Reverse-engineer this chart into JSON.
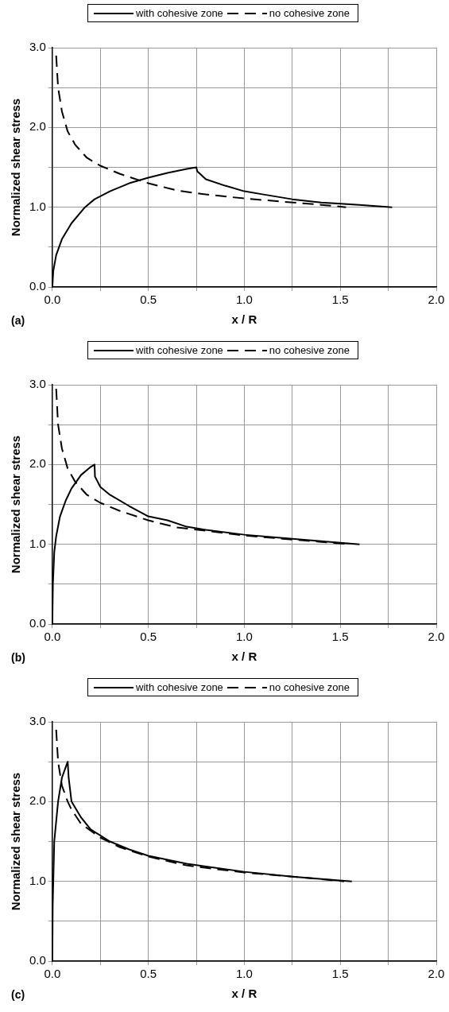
{
  "chart_data": [
    {
      "type": "line",
      "xlabel": "x / R",
      "ylabel": "Normalized shear stress",
      "annotations": [
        "(a)"
      ],
      "xlim": [
        0,
        2
      ],
      "ylim": [
        0,
        3
      ],
      "xticks": [
        {
          "value": 0,
          "label": "0.0"
        },
        {
          "value": 0.25,
          "label": null
        },
        {
          "value": 0.5,
          "label": "0.5"
        },
        {
          "value": 0.75,
          "label": null
        },
        {
          "value": 1,
          "label": "1.0"
        },
        {
          "value": 1.25,
          "label": null
        },
        {
          "value": 1.5,
          "label": "1.5"
        },
        {
          "value": 1.75,
          "label": null
        },
        {
          "value": 2,
          "label": "2.0"
        }
      ],
      "yticks": [
        {
          "value": 0,
          "label": "0.0"
        },
        {
          "value": 0.5,
          "label": null
        },
        {
          "value": 1,
          "label": "1.0"
        },
        {
          "value": 1.5,
          "label": null
        },
        {
          "value": 2,
          "label": "2.0"
        },
        {
          "value": 2.5,
          "label": null
        },
        {
          "value": 3,
          "label": "3.0"
        }
      ],
      "grid": true,
      "legend": "top",
      "marker": "none",
      "series": [
        {
          "name": "with cohesive zone",
          "color": "#000000",
          "line_style": "solid",
          "x": [
            0,
            0.005,
            0.02,
            0.05,
            0.1,
            0.17,
            0.22,
            0.3,
            0.4,
            0.5,
            0.6,
            0.7,
            0.75,
            0.755,
            0.8,
            0.9,
            1.0,
            1.1,
            1.25,
            1.4,
            1.6,
            1.77
          ],
          "values": [
            0,
            0.2,
            0.4,
            0.6,
            0.8,
            1.0,
            1.1,
            1.2,
            1.3,
            1.37,
            1.43,
            1.48,
            1.5,
            1.45,
            1.35,
            1.27,
            1.2,
            1.16,
            1.1,
            1.06,
            1.03,
            1.0
          ]
        },
        {
          "name": "no cohesive zone",
          "color": "#000000",
          "line_style": "dashed",
          "x": [
            0.02,
            0.03,
            0.05,
            0.08,
            0.12,
            0.18,
            0.25,
            0.35,
            0.5,
            0.65,
            0.8,
            1.0,
            1.2,
            1.4,
            1.53
          ],
          "values": [
            2.9,
            2.5,
            2.2,
            1.95,
            1.78,
            1.62,
            1.52,
            1.42,
            1.3,
            1.21,
            1.16,
            1.11,
            1.07,
            1.03,
            1.0
          ]
        }
      ]
    },
    {
      "type": "line",
      "xlabel": "x / R",
      "ylabel": "Normalized shear stress",
      "annotations": [
        "(b)"
      ],
      "xlim": [
        0,
        2
      ],
      "ylim": [
        0,
        3
      ],
      "xticks": [
        {
          "value": 0,
          "label": "0.0"
        },
        {
          "value": 0.25,
          "label": null
        },
        {
          "value": 0.5,
          "label": "0.5"
        },
        {
          "value": 0.75,
          "label": null
        },
        {
          "value": 1,
          "label": "1.0"
        },
        {
          "value": 1.25,
          "label": null
        },
        {
          "value": 1.5,
          "label": "1.5"
        },
        {
          "value": 1.75,
          "label": null
        },
        {
          "value": 2,
          "label": "2.0"
        }
      ],
      "yticks": [
        {
          "value": 0,
          "label": "0.0"
        },
        {
          "value": 0.5,
          "label": null
        },
        {
          "value": 1,
          "label": "1.0"
        },
        {
          "value": 1.5,
          "label": null
        },
        {
          "value": 2,
          "label": "2.0"
        },
        {
          "value": 2.5,
          "label": null
        },
        {
          "value": 3,
          "label": "3.0"
        }
      ],
      "grid": true,
      "legend": "top",
      "marker": "none",
      "series": [
        {
          "name": "with cohesive zone",
          "color": "#000000",
          "line_style": "solid",
          "x": [
            0,
            0.003,
            0.01,
            0.02,
            0.04,
            0.07,
            0.1,
            0.15,
            0.2,
            0.22,
            0.222,
            0.25,
            0.3,
            0.4,
            0.5,
            0.6,
            0.7,
            0.8,
            1.0,
            1.2,
            1.4,
            1.6
          ],
          "values": [
            0,
            0.5,
            0.9,
            1.1,
            1.35,
            1.55,
            1.7,
            1.87,
            1.97,
            2.0,
            1.85,
            1.72,
            1.62,
            1.48,
            1.35,
            1.3,
            1.22,
            1.18,
            1.12,
            1.08,
            1.04,
            1.0
          ]
        },
        {
          "name": "no cohesive zone",
          "color": "#000000",
          "line_style": "dashed",
          "x": [
            0.02,
            0.03,
            0.05,
            0.08,
            0.12,
            0.18,
            0.25,
            0.35,
            0.5,
            0.65,
            0.8,
            1.0,
            1.2,
            1.4,
            1.55
          ],
          "values": [
            2.95,
            2.5,
            2.2,
            1.95,
            1.78,
            1.62,
            1.52,
            1.42,
            1.3,
            1.21,
            1.17,
            1.11,
            1.07,
            1.03,
            1.0
          ]
        }
      ]
    },
    {
      "type": "line",
      "xlabel": "x / R",
      "ylabel": "Normalized shear stress",
      "annotations": [
        "(c)"
      ],
      "xlim": [
        0,
        2
      ],
      "ylim": [
        0,
        3
      ],
      "xticks": [
        {
          "value": 0,
          "label": "0.0"
        },
        {
          "value": 0.25,
          "label": null
        },
        {
          "value": 0.5,
          "label": "0.5"
        },
        {
          "value": 0.75,
          "label": null
        },
        {
          "value": 1,
          "label": "1.0"
        },
        {
          "value": 1.25,
          "label": null
        },
        {
          "value": 1.5,
          "label": "1.5"
        },
        {
          "value": 1.75,
          "label": null
        },
        {
          "value": 2,
          "label": "2.0"
        }
      ],
      "yticks": [
        {
          "value": 0,
          "label": "0.0"
        },
        {
          "value": 0.5,
          "label": null
        },
        {
          "value": 1,
          "label": "1.0"
        },
        {
          "value": 1.5,
          "label": null
        },
        {
          "value": 2,
          "label": "2.0"
        },
        {
          "value": 2.5,
          "label": null
        },
        {
          "value": 3,
          "label": "3.0"
        }
      ],
      "grid": true,
      "legend": "top",
      "marker": "none",
      "series": [
        {
          "name": "with cohesive zone",
          "color": "#000000",
          "line_style": "solid",
          "x": [
            0,
            0.002,
            0.01,
            0.03,
            0.05,
            0.08,
            0.085,
            0.1,
            0.15,
            0.2,
            0.3,
            0.4,
            0.5,
            0.7,
            1.0,
            1.25,
            1.56
          ],
          "values": [
            0,
            0.7,
            1.5,
            2.0,
            2.3,
            2.5,
            2.3,
            2.0,
            1.8,
            1.65,
            1.5,
            1.4,
            1.32,
            1.22,
            1.12,
            1.06,
            1.0
          ]
        },
        {
          "name": "no cohesive zone",
          "color": "#000000",
          "line_style": "dashed",
          "x": [
            0.02,
            0.03,
            0.05,
            0.08,
            0.1,
            0.15,
            0.25,
            0.35,
            0.5,
            0.7,
            1.0,
            1.25,
            1.52
          ],
          "values": [
            2.9,
            2.5,
            2.2,
            2.0,
            1.9,
            1.72,
            1.55,
            1.43,
            1.31,
            1.2,
            1.11,
            1.06,
            1.0
          ]
        }
      ]
    }
  ]
}
